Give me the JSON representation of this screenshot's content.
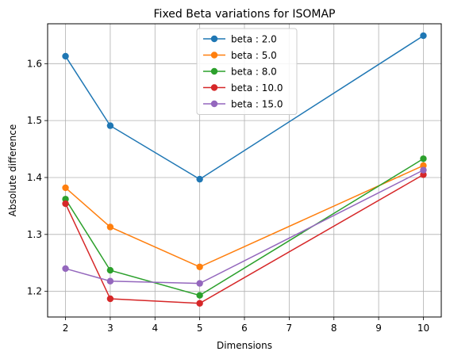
{
  "chart_data": {
    "type": "line",
    "title": "Fixed Beta variations for ISOMAP",
    "xlabel": "Dimensions",
    "ylabel": "Absolute difference",
    "x": [
      2,
      3,
      5,
      10
    ],
    "xlim": [
      1.6,
      10.4
    ],
    "ylim": [
      1.155,
      1.67
    ],
    "xticks": [
      2,
      3,
      4,
      5,
      6,
      7,
      8,
      9,
      10
    ],
    "yticks": [
      1.2,
      1.3,
      1.4,
      1.5,
      1.6
    ],
    "ytick_labels": [
      "1.2",
      "1.3",
      "1.4",
      "1.5",
      "1.6"
    ],
    "grid": true,
    "legend_position": "upper-center",
    "series": [
      {
        "name": "beta : 2.0",
        "color": "#1f77b4",
        "values": [
          1.613,
          1.491,
          1.397,
          1.649
        ]
      },
      {
        "name": "beta : 5.0",
        "color": "#ff7f0e",
        "values": [
          1.382,
          1.313,
          1.243,
          1.421
        ]
      },
      {
        "name": "beta : 8.0",
        "color": "#2ca02c",
        "values": [
          1.362,
          1.237,
          1.193,
          1.433
        ]
      },
      {
        "name": "beta : 10.0",
        "color": "#d62728",
        "values": [
          1.354,
          1.187,
          1.179,
          1.405
        ]
      },
      {
        "name": "beta : 15.0",
        "color": "#9467bd",
        "values": [
          1.24,
          1.218,
          1.214,
          1.413
        ]
      }
    ]
  }
}
